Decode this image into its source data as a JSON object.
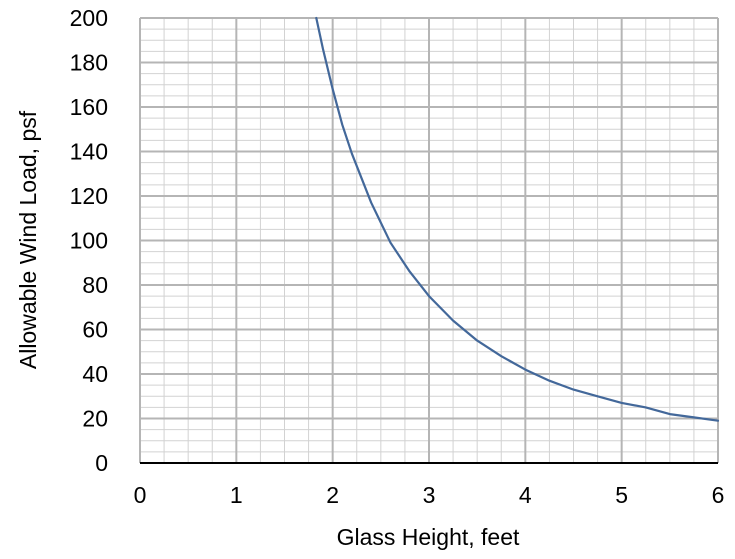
{
  "chart_data": {
    "type": "line",
    "title": "",
    "xlabel": "Glass Height, feet",
    "ylabel": "Allowable Wind Load, psf",
    "xlim": [
      0,
      6
    ],
    "ylim": [
      0,
      200
    ],
    "x_ticks": [
      "0",
      "1",
      "2",
      "3",
      "4",
      "5",
      "6"
    ],
    "y_ticks": [
      "0",
      "20",
      "40",
      "60",
      "80",
      "100",
      "120",
      "140",
      "160",
      "180",
      "200"
    ],
    "grid": true,
    "legend": "none",
    "series": [
      {
        "color": "#43689a",
        "x": [
          1.83,
          1.9,
          2.0,
          2.1,
          2.2,
          2.4,
          2.6,
          2.8,
          3.0,
          3.25,
          3.5,
          3.75,
          4.0,
          4.25,
          4.5,
          4.75,
          5.0,
          5.25,
          5.5,
          5.75,
          6.0
        ],
        "y": [
          200,
          186,
          168,
          152,
          139,
          117,
          99,
          86,
          75,
          64,
          55,
          48,
          42,
          37,
          33,
          30,
          27,
          25,
          22,
          20.5,
          19
        ]
      }
    ]
  }
}
